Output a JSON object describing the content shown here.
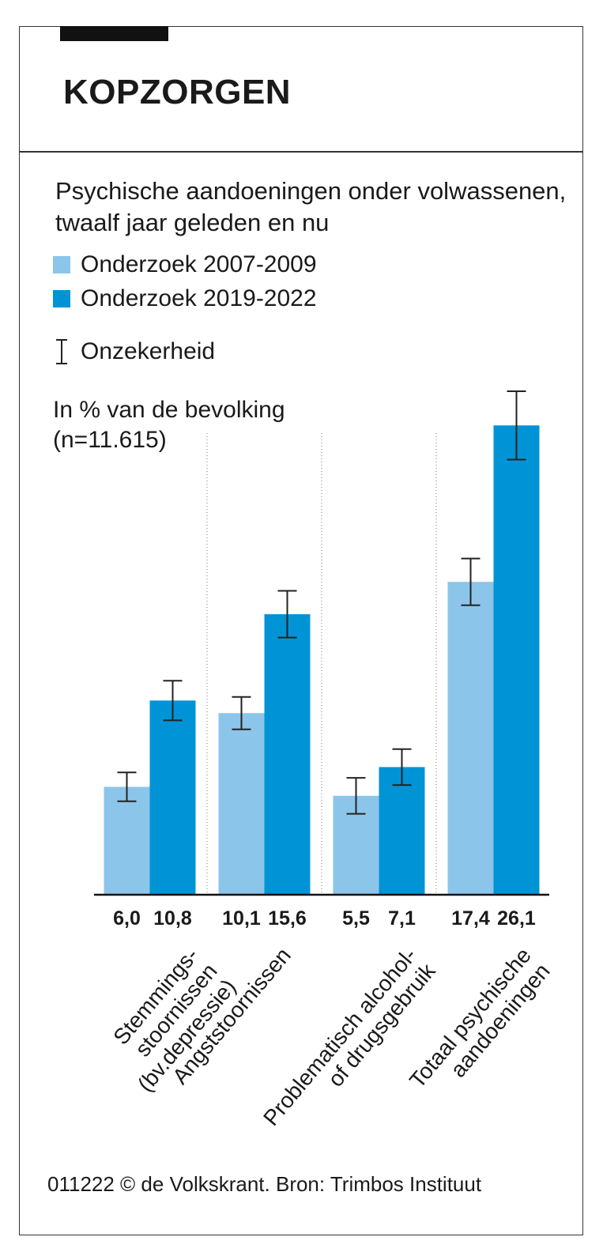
{
  "chart_data": {
    "type": "bar",
    "title": "KOPZORGEN",
    "subtitle": "Psychische aandoeningen onder volwassenen, twaalf jaar geleden en nu",
    "error_label": "Onzekerheid",
    "ylabel": "In % van de bevolking (n=11.615)",
    "categories": [
      [
        "Stemmings-",
        "stoornissen",
        "(bv.depressie)"
      ],
      [
        "Angststoornissen"
      ],
      [
        "Problematisch alcohol-",
        "of drugsgebruik"
      ],
      [
        "Totaal psychische",
        "aandoeningen"
      ]
    ],
    "series": [
      {
        "name": "Onderzoek 2007-2009",
        "color": "#8cc5ea",
        "values": [
          6.0,
          10.1,
          5.5,
          17.4
        ],
        "value_labels": [
          "6,0",
          "10,1",
          "5,5",
          "17,4"
        ],
        "errors": [
          0.8,
          0.9,
          1.0,
          1.3
        ]
      },
      {
        "name": "Onderzoek 2019-2022",
        "color": "#0094d6",
        "values": [
          10.8,
          15.6,
          7.1,
          26.1
        ],
        "value_labels": [
          "10,8",
          "15,6",
          "7,1",
          "26,1"
        ],
        "errors": [
          1.1,
          1.3,
          1.0,
          1.9
        ]
      }
    ],
    "ylim": [
      0,
      28
    ],
    "footer": "011222 © de Volkskrant. Bron: Trimbos Instituut"
  }
}
